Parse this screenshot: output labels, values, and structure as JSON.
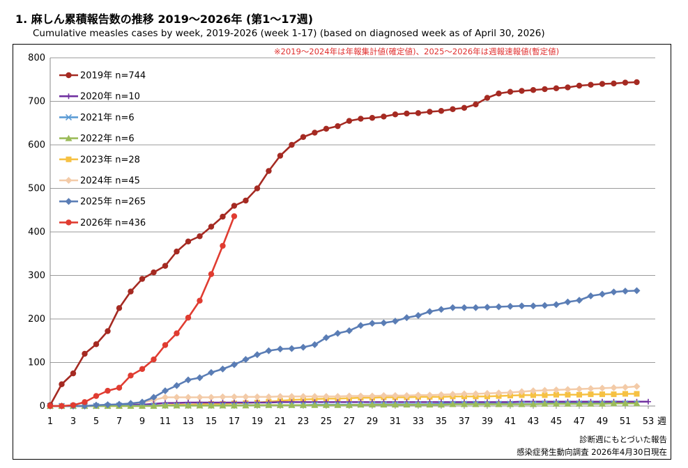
{
  "title": "1. 麻しん累積報告数の推移  2019〜2026年 (第1〜17週)",
  "subtitle": "Cumulative measles cases by week, 2019-2026 (week 1-17)  (based on diagnosed week as of April 30, 2026)",
  "note": "※2019〜2024年は年報集計値(確定値)、2025〜2026年は週報速報値(暫定値)",
  "footer": {
    "line1": "診断週にもとづいた報告",
    "line2": "感染症発生動向調査 2026年4月30日現在"
  },
  "chart_data": {
    "type": "line",
    "xlabel": "週",
    "ylabel": "",
    "xlim": [
      1,
      53
    ],
    "ylim": [
      0,
      800
    ],
    "x_ticks": [
      1,
      3,
      5,
      7,
      9,
      11,
      13,
      15,
      17,
      19,
      21,
      23,
      25,
      27,
      29,
      31,
      33,
      35,
      37,
      39,
      41,
      43,
      45,
      47,
      49,
      51,
      53
    ],
    "y_ticks": [
      0,
      100,
      200,
      300,
      400,
      500,
      600,
      700,
      800
    ],
    "grid": true,
    "legend_position": "top-left",
    "series": [
      {
        "name": "2019年 n=744",
        "color": "#a52a22",
        "marker": "circle",
        "values": [
          2,
          50,
          75,
          120,
          142,
          172,
          225,
          263,
          292,
          307,
          322,
          355,
          378,
          390,
          412,
          435,
          460,
          472,
          500,
          540,
          575,
          600,
          618,
          628,
          637,
          643,
          655,
          660,
          662,
          665,
          670,
          672,
          673,
          676,
          678,
          682,
          685,
          693,
          708,
          718,
          722,
          724,
          726,
          728,
          730,
          732,
          736,
          738,
          740,
          741,
          743,
          744
        ]
      },
      {
        "name": "2020年 n=10",
        "color": "#7030a0",
        "marker": "plus",
        "values": [
          0,
          0,
          0,
          0,
          1,
          2,
          2,
          3,
          3,
          5,
          7,
          7,
          8,
          8,
          8,
          8,
          8,
          8,
          8,
          8,
          9,
          9,
          9,
          9,
          9,
          9,
          9,
          9,
          9,
          9,
          9,
          9,
          9,
          9,
          9,
          9,
          9,
          9,
          9,
          9,
          9,
          10,
          10,
          10,
          10,
          10,
          10,
          10,
          10,
          10,
          10,
          10,
          10
        ]
      },
      {
        "name": "2021年 n=6",
        "color": "#5b9bd5",
        "marker": "x",
        "values": [
          0,
          0,
          0,
          0,
          0,
          0,
          1,
          1,
          1,
          1,
          1,
          1,
          1,
          1,
          1,
          1,
          1,
          2,
          2,
          2,
          2,
          2,
          2,
          3,
          3,
          3,
          3,
          3,
          4,
          4,
          4,
          4,
          4,
          4,
          5,
          5,
          5,
          5,
          5,
          5,
          5,
          5,
          5,
          6,
          6,
          6,
          6,
          6,
          6,
          6,
          6,
          6
        ]
      },
      {
        "name": "2022年 n=6",
        "color": "#9bbb59",
        "marker": "triangle",
        "values": [
          0,
          0,
          0,
          0,
          0,
          0,
          0,
          0,
          0,
          0,
          1,
          1,
          1,
          1,
          1,
          1,
          1,
          1,
          2,
          2,
          2,
          2,
          2,
          2,
          2,
          2,
          2,
          3,
          3,
          3,
          3,
          3,
          3,
          3,
          3,
          4,
          4,
          4,
          4,
          4,
          4,
          4,
          4,
          5,
          5,
          5,
          5,
          5,
          5,
          6,
          6,
          6
        ]
      },
      {
        "name": "2023年 n=28",
        "color": "#f6c143",
        "marker": "square",
        "values": [
          0,
          0,
          0,
          0,
          0,
          0,
          0,
          0,
          0,
          1,
          2,
          3,
          3,
          4,
          5,
          5,
          6,
          7,
          8,
          10,
          12,
          14,
          15,
          16,
          17,
          17,
          18,
          19,
          19,
          20,
          20,
          20,
          21,
          21,
          21,
          22,
          22,
          22,
          22,
          23,
          24,
          25,
          25,
          25,
          26,
          26,
          26,
          27,
          27,
          27,
          28,
          28
        ]
      },
      {
        "name": "2024年 n=45",
        "color": "#f3cba8",
        "marker": "diamond",
        "values": [
          0,
          0,
          0,
          0,
          1,
          2,
          3,
          5,
          8,
          14,
          20,
          20,
          20,
          20,
          20,
          21,
          21,
          21,
          21,
          21,
          22,
          22,
          22,
          22,
          22,
          22,
          23,
          23,
          23,
          24,
          24,
          24,
          25,
          25,
          26,
          27,
          28,
          28,
          29,
          30,
          31,
          33,
          35,
          36,
          37,
          38,
          39,
          40,
          41,
          42,
          43,
          45
        ]
      },
      {
        "name": "2025年 n=265",
        "color": "#5a7db5",
        "marker": "diamond",
        "values": [
          0,
          0,
          0,
          0,
          2,
          3,
          4,
          6,
          9,
          20,
          35,
          47,
          60,
          65,
          77,
          85,
          95,
          107,
          118,
          127,
          131,
          132,
          135,
          141,
          157,
          167,
          173,
          185,
          190,
          191,
          195,
          203,
          208,
          217,
          222,
          226,
          226,
          226,
          227,
          228,
          229,
          230,
          230,
          231,
          233,
          239,
          243,
          253,
          257,
          262,
          264,
          265
        ]
      },
      {
        "name": "2026年 n=436",
        "color": "#e03c31",
        "marker": "circle",
        "values": [
          0,
          0,
          2,
          9,
          23,
          35,
          42,
          70,
          85,
          107,
          140,
          167,
          203,
          242,
          303,
          368,
          436
        ]
      }
    ]
  }
}
